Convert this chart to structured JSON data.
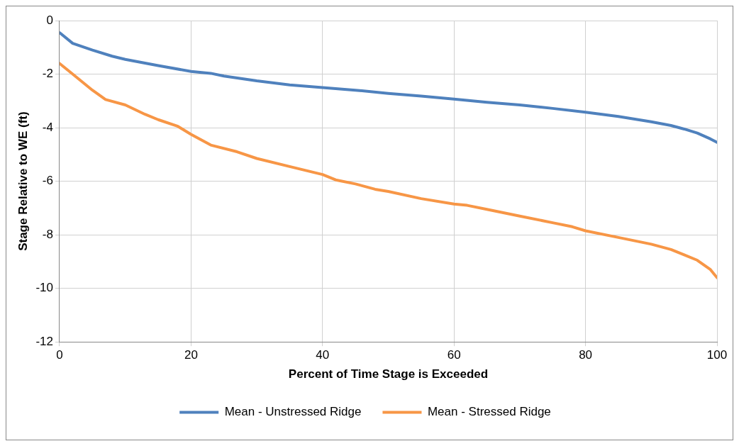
{
  "chart_data": {
    "type": "line",
    "xlabel": "Percent of Time Stage is Exceeded",
    "ylabel": "Stage Relative to WE (ft)",
    "xlim": [
      0,
      100
    ],
    "xticks": [
      0,
      20,
      40,
      60,
      80,
      100
    ],
    "ylim": [
      -12,
      0
    ],
    "yticks": [
      -12,
      -10,
      -8,
      -6,
      -4,
      -2,
      0
    ],
    "grid": true,
    "legend": "bottom",
    "marker": "none",
    "line_style": "solid",
    "series": [
      {
        "name": "Mean - Unstressed Ridge",
        "color": "#4f81bd",
        "x": [
          0,
          2,
          5,
          8,
          10,
          15,
          20,
          23,
          25,
          30,
          35,
          40,
          45,
          50,
          55,
          60,
          65,
          70,
          75,
          80,
          85,
          90,
          93,
          95,
          97,
          99,
          100
        ],
        "values": [
          -0.45,
          -0.85,
          -1.1,
          -1.33,
          -1.45,
          -1.68,
          -1.9,
          -1.97,
          -2.07,
          -2.25,
          -2.4,
          -2.5,
          -2.6,
          -2.72,
          -2.82,
          -2.93,
          -3.05,
          -3.15,
          -3.28,
          -3.42,
          -3.58,
          -3.78,
          -3.92,
          -4.05,
          -4.2,
          -4.42,
          -4.55
        ]
      },
      {
        "name": "Mean - Stressed Ridge",
        "color": "#f79646",
        "x": [
          0,
          2,
          5,
          7,
          10,
          13,
          15,
          18,
          20,
          23,
          27,
          30,
          35,
          40,
          42,
          45,
          48,
          50,
          55,
          60,
          62,
          65,
          70,
          75,
          78,
          80,
          85,
          90,
          93,
          95,
          97,
          99,
          100
        ],
        "values": [
          -1.6,
          -2.0,
          -2.6,
          -2.95,
          -3.15,
          -3.5,
          -3.7,
          -3.95,
          -4.25,
          -4.65,
          -4.9,
          -5.15,
          -5.45,
          -5.75,
          -5.95,
          -6.1,
          -6.3,
          -6.38,
          -6.65,
          -6.85,
          -6.9,
          -7.05,
          -7.3,
          -7.55,
          -7.7,
          -7.85,
          -8.1,
          -8.35,
          -8.55,
          -8.75,
          -8.95,
          -9.3,
          -9.6
        ]
      }
    ]
  }
}
